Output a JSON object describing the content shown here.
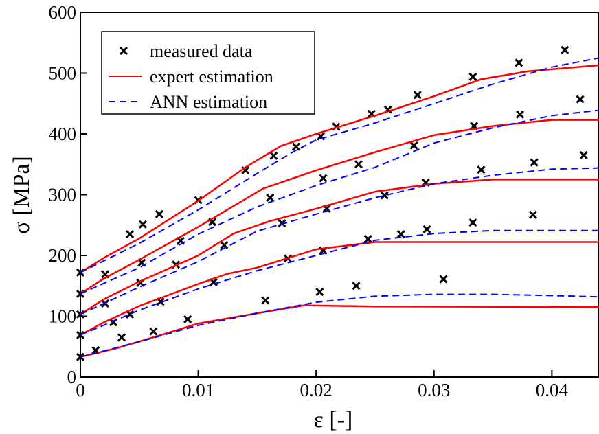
{
  "chart_data": {
    "type": "line",
    "x_label": "ε [-]",
    "y_label": "σ [MPa]",
    "xlim": [
      0,
      0.044
    ],
    "ylim": [
      0,
      600
    ],
    "xticks": [
      0,
      0.01,
      0.02,
      0.03,
      0.04
    ],
    "yticks": [
      0,
      100,
      200,
      300,
      400,
      500,
      600
    ],
    "legend": "upper left",
    "series": [
      {
        "name": "measured data",
        "color": "#000000",
        "mode": "markers",
        "x": [
          0,
          0.0042,
          0.0053,
          0.0067,
          0.01,
          0.014,
          0.0164,
          0.0183,
          0.0204,
          0.0217,
          0.0247,
          0.0261,
          0.0286,
          0.0333,
          0.0372,
          0.0411,
          0,
          0.0021,
          0.0052,
          0.0085,
          0.0112,
          0.0161,
          0.0206,
          0.0236,
          0.0283,
          0.0334,
          0.0373,
          0.0424,
          0,
          0.0021,
          0.0051,
          0.0081,
          0.0122,
          0.0171,
          0.0209,
          0.0258,
          0.0293,
          0.034,
          0.0385,
          0.0427,
          0,
          0.0028,
          0.0042,
          0.0068,
          0.0113,
          0.0176,
          0.0206,
          0.0244,
          0.0272,
          0.0294,
          0.0333,
          0.0384,
          0,
          0.0013,
          0.0035,
          0.0062,
          0.0091,
          0.0157,
          0.0203,
          0.0234,
          0.0308
        ],
        "values": [
          172,
          235,
          251,
          268,
          291,
          340,
          364,
          379,
          396,
          412,
          433,
          440,
          464,
          494,
          517,
          538,
          137,
          169,
          188,
          224,
          255,
          295,
          327,
          350,
          381,
          413,
          432,
          457,
          103,
          121,
          155,
          185,
          217,
          253,
          277,
          299,
          320,
          341,
          353,
          365,
          69,
          90,
          103,
          124,
          156,
          195,
          208,
          227,
          235,
          243,
          254,
          267,
          33,
          44,
          65,
          75,
          95,
          126,
          140,
          150,
          161
        ]
      },
      {
        "name": "expert estimation",
        "color": "#ff0000",
        "mode": "line",
        "dash": false,
        "x": [
          0,
          0.002,
          0.005,
          0.01,
          0.014,
          0.017,
          0.02,
          0.025,
          0.03,
          0.034,
          0.038,
          0.044,
          null,
          0,
          0.002,
          0.005,
          0.01,
          0.0155,
          0.02,
          0.025,
          0.03,
          0.035,
          0.04,
          0.044,
          null,
          0,
          0.002,
          0.005,
          0.01,
          0.013,
          0.016,
          0.02,
          0.025,
          0.03,
          0.035,
          0.044,
          null,
          0,
          0.002,
          0.005,
          0.01,
          0.0125,
          0.015,
          0.02,
          0.025,
          0.044,
          null,
          0,
          0.003,
          0.007,
          0.01,
          0.015,
          0.019,
          0.025,
          0.044
        ],
        "values": [
          172,
          196,
          228,
          290,
          345,
          380,
          400,
          430,
          462,
          490,
          503,
          513,
          null,
          137,
          162,
          193,
          247,
          310,
          340,
          370,
          398,
          413,
          423,
          423,
          null,
          103,
          128,
          157,
          200,
          236,
          256,
          277,
          305,
          318,
          325,
          325,
          null,
          69,
          90,
          117,
          153,
          170,
          180,
          210,
          222,
          222,
          null,
          33,
          47,
          70,
          88,
          105,
          118,
          116,
          115
        ]
      },
      {
        "name": "ANN estimation",
        "color": "#0000ff",
        "mode": "line",
        "dash": true,
        "x": [
          0,
          0.005,
          0.01,
          0.015,
          0.018,
          0.02,
          0.025,
          0.03,
          0.035,
          0.04,
          0.044,
          null,
          0,
          0.005,
          0.01,
          0.015,
          0.02,
          0.025,
          0.03,
          0.035,
          0.04,
          0.044,
          null,
          0,
          0.005,
          0.01,
          0.015,
          0.02,
          0.025,
          0.03,
          0.035,
          0.04,
          0.044,
          null,
          0,
          0.005,
          0.01,
          0.015,
          0.02,
          0.025,
          0.03,
          0.035,
          0.044,
          null,
          0,
          0.005,
          0.01,
          0.015,
          0.02,
          0.025,
          0.03,
          0.035,
          0.04,
          0.044
        ],
        "values": [
          172,
          220,
          275,
          335,
          370,
          390,
          418,
          450,
          482,
          510,
          525,
          null,
          137,
          180,
          235,
          280,
          315,
          345,
          385,
          410,
          430,
          439,
          null,
          103,
          148,
          190,
          240,
          268,
          295,
          318,
          332,
          342,
          344,
          null,
          69,
          110,
          145,
          175,
          200,
          225,
          236,
          241,
          241,
          null,
          33,
          58,
          85,
          105,
          123,
          133,
          136,
          136,
          134,
          132
        ]
      }
    ]
  }
}
